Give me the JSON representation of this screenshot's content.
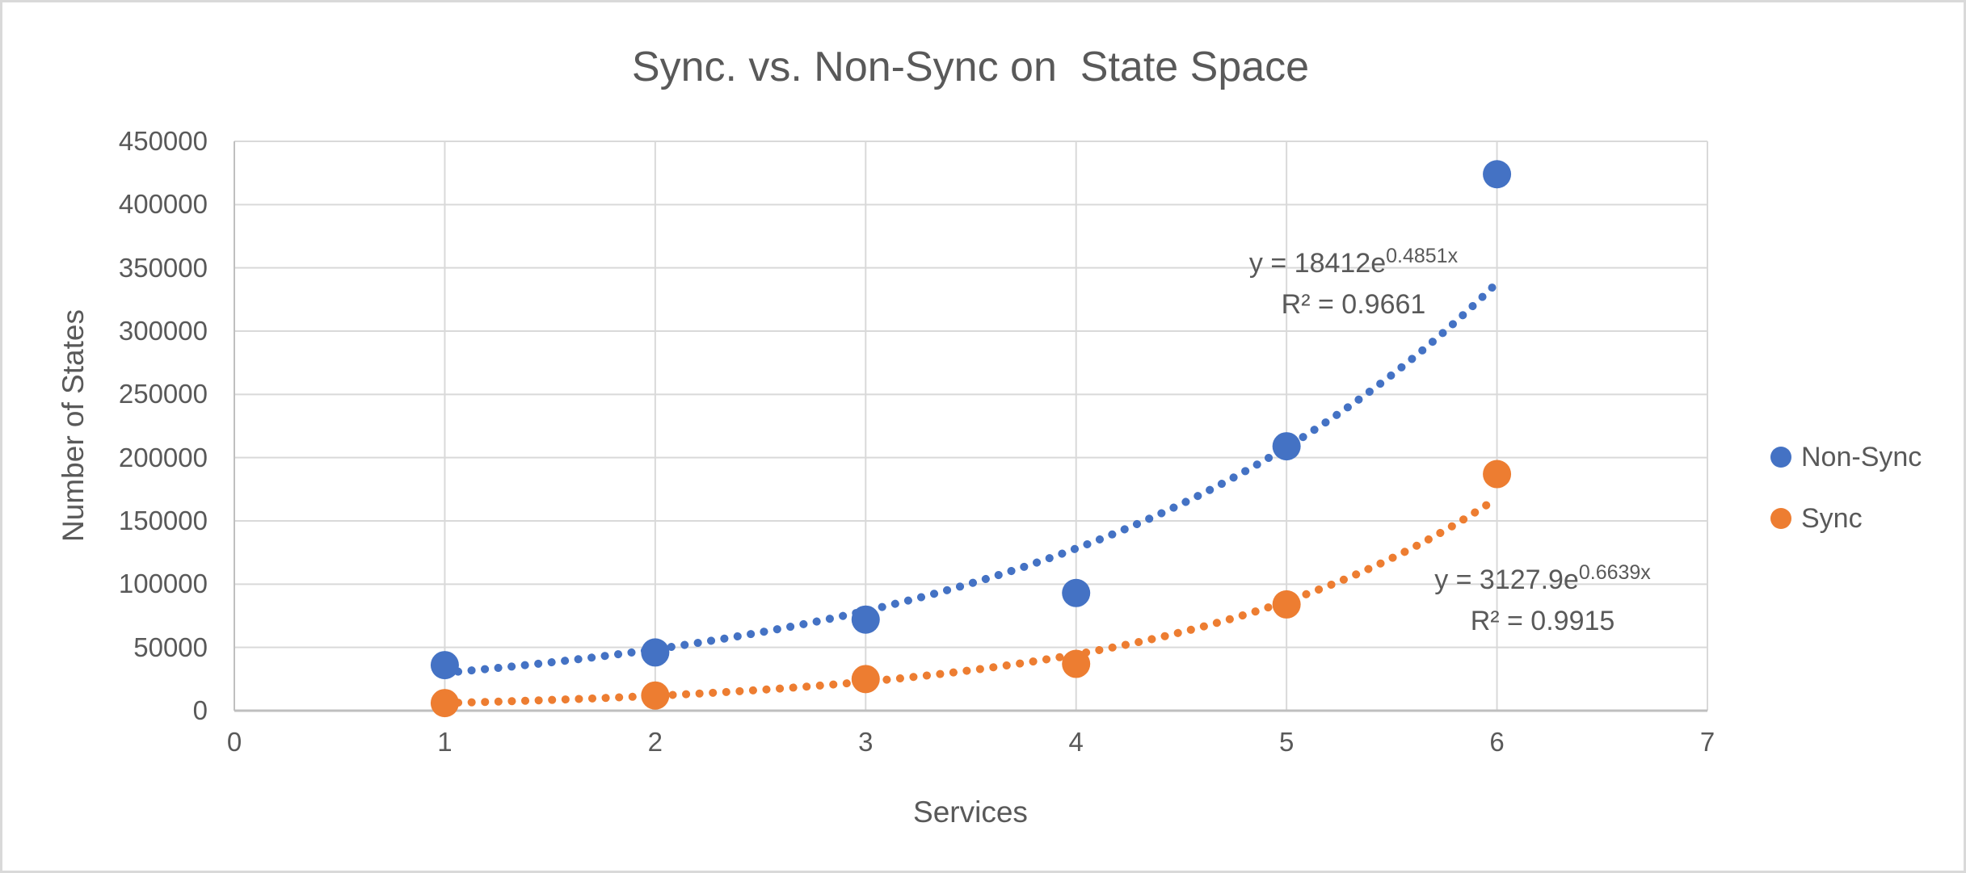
{
  "window": {
    "background": "#ffffff",
    "border_color": "#d9d9d9"
  },
  "chart_data": {
    "type": "scatter",
    "title": "Sync. vs. Non-Sync on  State Space",
    "xlabel": "Services",
    "ylabel": "Number of States",
    "xlim": [
      0,
      7
    ],
    "ylim": [
      0,
      450000
    ],
    "x_ticks": [
      0,
      1,
      2,
      3,
      4,
      5,
      6,
      7
    ],
    "y_ticks": [
      0,
      50000,
      100000,
      150000,
      200000,
      250000,
      300000,
      350000,
      400000,
      450000
    ],
    "grid": true,
    "legend_position": "right",
    "x": [
      1,
      2,
      3,
      4,
      5,
      6
    ],
    "series": [
      {
        "name": "Non-Sync",
        "color": "#4472C4",
        "values": [
          36000,
          46000,
          72000,
          93000,
          209000,
          424000
        ],
        "trendline": {
          "type": "exponential",
          "a": 18412,
          "b": 0.4851,
          "equation_base": "y = 18412e",
          "equation_exponent": "0.4851x",
          "r2": "R² = 0.9661"
        }
      },
      {
        "name": "Sync",
        "color": "#ED7D31",
        "values": [
          6000,
          12000,
          25000,
          37000,
          84000,
          187000
        ],
        "trendline": {
          "type": "exponential",
          "a": 3127.9,
          "b": 0.6639,
          "equation_base": "y = 3127.9e",
          "equation_exponent": "0.6639x",
          "r2": "R² = 0.9915"
        }
      }
    ],
    "colors": {
      "grid": "#d9d9d9",
      "axis": "#bfbfbf",
      "text": "#595959"
    }
  }
}
